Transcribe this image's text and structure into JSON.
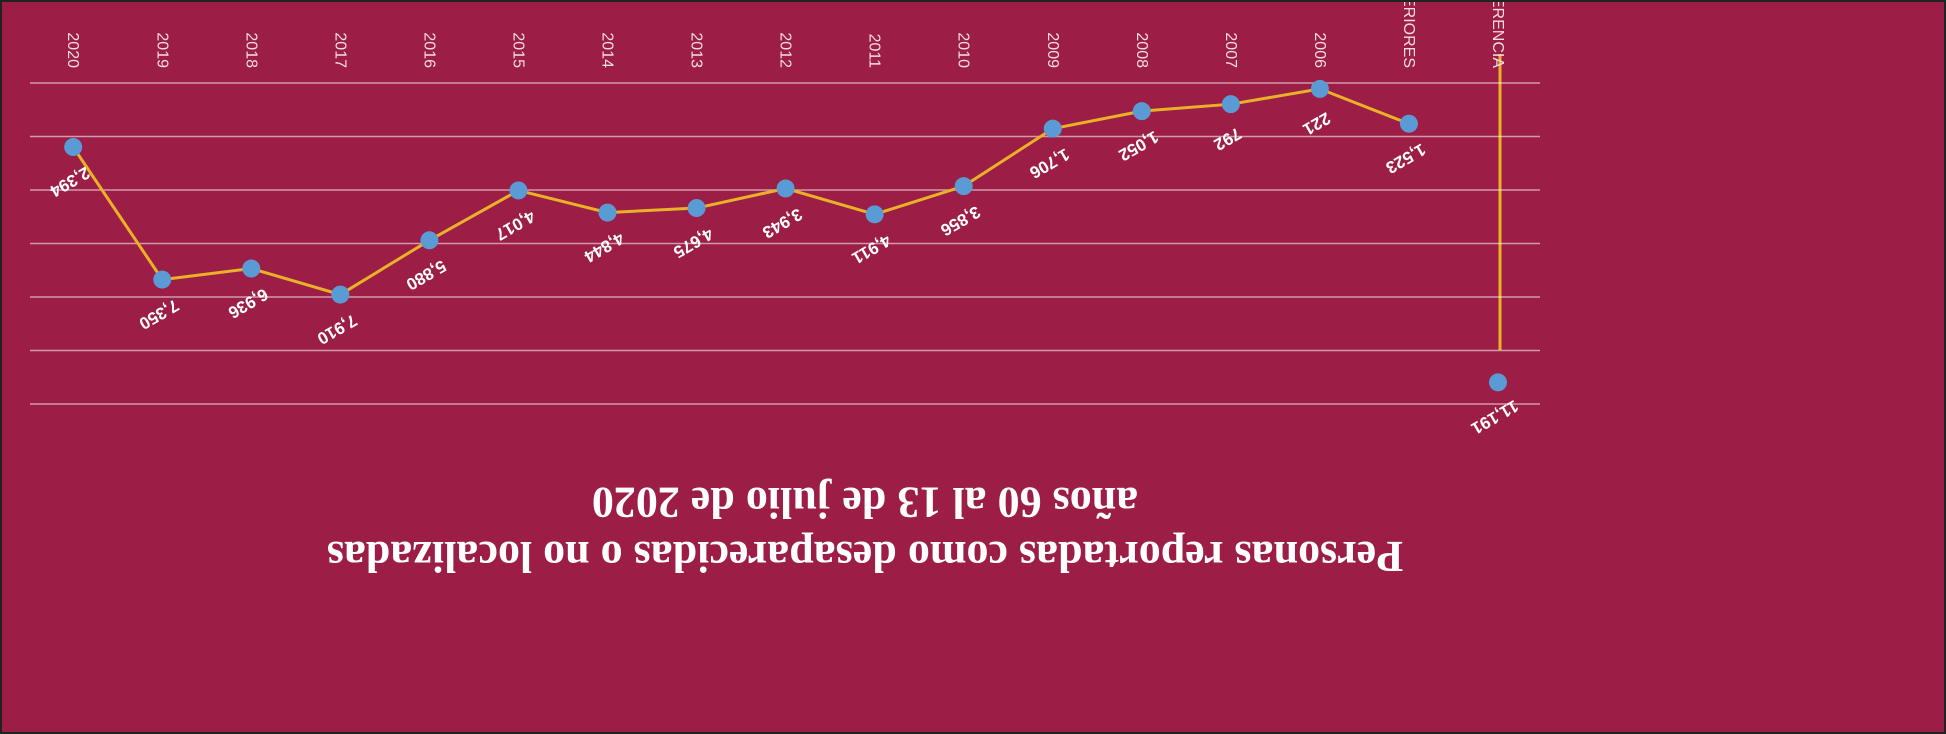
{
  "chart_data": {
    "type": "line",
    "title": [
      "Personas reportadas como desaparecidas o no localizadas",
      "años 60 al 13 de julio de 2020"
    ],
    "categories": [
      "SIN AÑO DE REFERENCIA",
      "AÑOS ANTERIORES",
      "2006",
      "2007",
      "2008",
      "2009",
      "2010",
      "2011",
      "2012",
      "2013",
      "2014",
      "2015",
      "2016",
      "2017",
      "2018",
      "2019",
      "2020"
    ],
    "values": [
      11191,
      1523,
      221,
      792,
      1052,
      1706,
      3856,
      4911,
      3943,
      4675,
      4844,
      4017,
      5880,
      7910,
      6936,
      7350,
      2394
    ],
    "value_labels": [
      "11,191",
      "1,523",
      "221",
      "792",
      "1,052",
      "1,706",
      "3,856",
      "4,911",
      "3,943",
      "4,675",
      "4,844",
      "4,017",
      "5,880",
      "7,910",
      "6,936",
      "7,350",
      "2,394"
    ],
    "color": "#e9b127",
    "marker_color": "#5b9bd5",
    "ylim": [
      0,
      12000
    ],
    "yticks": [
      0,
      2000,
      4000,
      6000,
      8000,
      10000,
      12000
    ],
    "grid": true
  }
}
